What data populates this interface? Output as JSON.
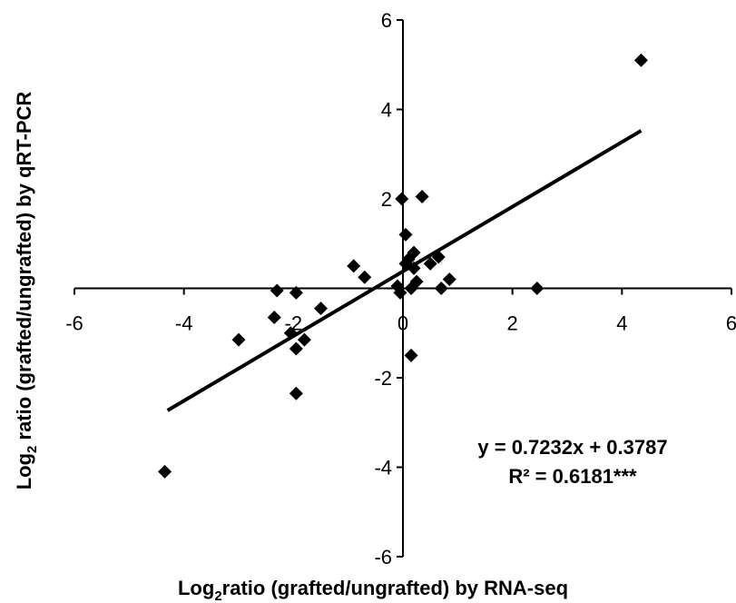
{
  "chart_data": {
    "type": "scatter",
    "xlim": [
      -6,
      6
    ],
    "ylim": [
      -6,
      6
    ],
    "x_ticks": [
      -6,
      -4,
      -2,
      0,
      2,
      4,
      6
    ],
    "y_ticks": [
      -6,
      -4,
      -2,
      0,
      2,
      4,
      6
    ],
    "x_tick_labels": [
      "-6",
      "-4",
      "-2",
      "0",
      "2",
      "4",
      "6"
    ],
    "y_tick_labels": [
      "-6",
      "-4",
      "-2",
      "0",
      "2",
      "4",
      "6"
    ],
    "xlabel": {
      "prefix": "Log",
      "sub": "2",
      "suffix": "ratio (grafted/ungrafted) by RNA-seq"
    },
    "ylabel": {
      "prefix": "Log",
      "sub": "2",
      "suffix": " ratio (grafted/ungrafted) by qRT-PCR"
    },
    "grid": false,
    "marker": "diamond",
    "marker_color": "#000000",
    "points": [
      {
        "x": 4.35,
        "y": 5.1
      },
      {
        "x": -4.35,
        "y": -4.1
      },
      {
        "x": 2.45,
        "y": 0.0
      },
      {
        "x": -3.0,
        "y": -1.15
      },
      {
        "x": -2.3,
        "y": -0.05
      },
      {
        "x": -2.35,
        "y": -0.65
      },
      {
        "x": -1.95,
        "y": -0.1
      },
      {
        "x": -2.05,
        "y": -1.0
      },
      {
        "x": -1.95,
        "y": -1.35
      },
      {
        "x": -1.8,
        "y": -1.15
      },
      {
        "x": -1.95,
        "y": -2.35
      },
      {
        "x": -1.5,
        "y": -0.45
      },
      {
        "x": -0.9,
        "y": 0.5
      },
      {
        "x": -0.7,
        "y": 0.25
      },
      {
        "x": -0.1,
        "y": 0.05
      },
      {
        "x": -0.05,
        "y": -0.1
      },
      {
        "x": -0.02,
        "y": 2.0
      },
      {
        "x": 0.05,
        "y": 0.55
      },
      {
        "x": 0.05,
        "y": 1.2
      },
      {
        "x": 0.1,
        "y": 0.65
      },
      {
        "x": 0.15,
        "y": 0.0
      },
      {
        "x": 0.2,
        "y": 0.45
      },
      {
        "x": 0.2,
        "y": 0.8
      },
      {
        "x": 0.25,
        "y": 0.15
      },
      {
        "x": 0.35,
        "y": 2.05
      },
      {
        "x": 0.5,
        "y": 0.55
      },
      {
        "x": 0.65,
        "y": 0.7
      },
      {
        "x": 0.7,
        "y": 0.0
      },
      {
        "x": 0.85,
        "y": 0.2
      },
      {
        "x": 0.15,
        "y": -1.5
      }
    ],
    "trendline": {
      "slope": 0.7232,
      "intercept": 0.3787,
      "x_range": [
        -4.3,
        4.35
      ]
    },
    "annotations": [
      "y = 0.7232x + 0.3787",
      "R² = 0.6181***"
    ]
  }
}
